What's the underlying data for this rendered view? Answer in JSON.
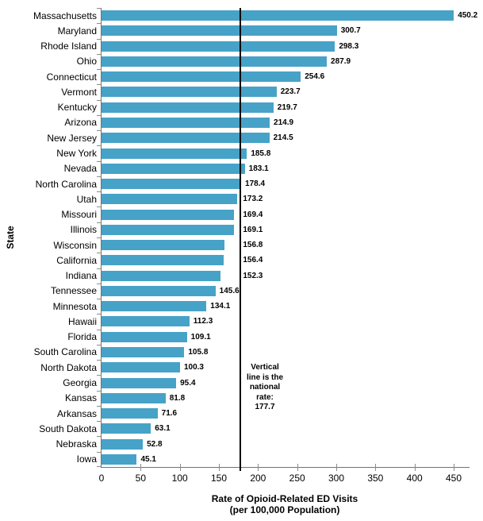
{
  "chart_data": {
    "type": "bar",
    "orientation": "horizontal",
    "title": "",
    "ylabel": "State",
    "xlabel": "Rate of Opioid-Related ED Visits\n(per 100,000 Population)",
    "categories": [
      "Massachusetts",
      "Maryland",
      "Rhode Island",
      "Ohio",
      "Connecticut",
      "Vermont",
      "Kentucky",
      "Arizona",
      "New Jersey",
      "New York",
      "Nevada",
      "North Carolina",
      "Utah",
      "Missouri",
      "Illinois",
      "Wisconsin",
      "California",
      "Indiana",
      "Tennessee",
      "Minnesota",
      "Hawaii",
      "Florida",
      "South Carolina",
      "North Dakota",
      "Georgia",
      "Kansas",
      "Arkansas",
      "South Dakota",
      "Nebraska",
      "Iowa"
    ],
    "values": [
      450.2,
      300.7,
      298.3,
      287.9,
      254.6,
      223.7,
      219.7,
      214.9,
      214.5,
      185.8,
      183.1,
      178.4,
      173.2,
      169.4,
      169.1,
      156.8,
      156.4,
      152.3,
      145.6,
      134.1,
      112.3,
      109.1,
      105.8,
      100.3,
      95.4,
      81.8,
      71.6,
      63.1,
      52.8,
      45.1
    ],
    "value_label_decimals": 1,
    "xlim": [
      0,
      450
    ],
    "xticks": [
      0,
      50,
      100,
      150,
      200,
      250,
      300,
      350,
      400,
      450
    ],
    "grid": false,
    "legend": false,
    "bar_color": "#47A2C7",
    "reference_line": {
      "value": 177.7,
      "color": "#000000",
      "annotation": "Vertical\nline is the\nnational\nrate:\n177.7"
    }
  }
}
